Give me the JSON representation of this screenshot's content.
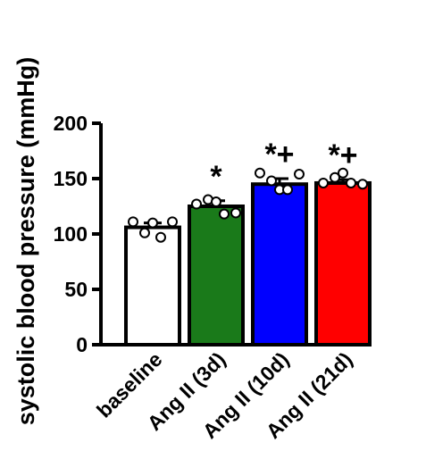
{
  "chart_data": {
    "type": "bar",
    "title": "",
    "xlabel": "",
    "ylabel": "systolic blood pressure (mmHg)",
    "ylim": [
      0,
      200
    ],
    "yticks": [
      0,
      50,
      100,
      150,
      200
    ],
    "grid": false,
    "categories": [
      "baseline",
      "Ang II (3d)",
      "Ang II (10d)",
      "Ang II (21d)"
    ],
    "values": [
      106,
      125,
      145,
      146
    ],
    "error_sem": [
      4,
      5,
      5,
      3
    ],
    "colors": [
      "#ffffff",
      "#1a7a1a",
      "#0000ff",
      "#ff0000"
    ],
    "significance": [
      "",
      "*",
      "*+",
      "*+"
    ],
    "points": [
      [
        111,
        101,
        110,
        97,
        111
      ],
      [
        127,
        131,
        129,
        118,
        119
      ],
      [
        155,
        148,
        140,
        140,
        154
      ],
      [
        146,
        151,
        155,
        146,
        145
      ]
    ]
  }
}
